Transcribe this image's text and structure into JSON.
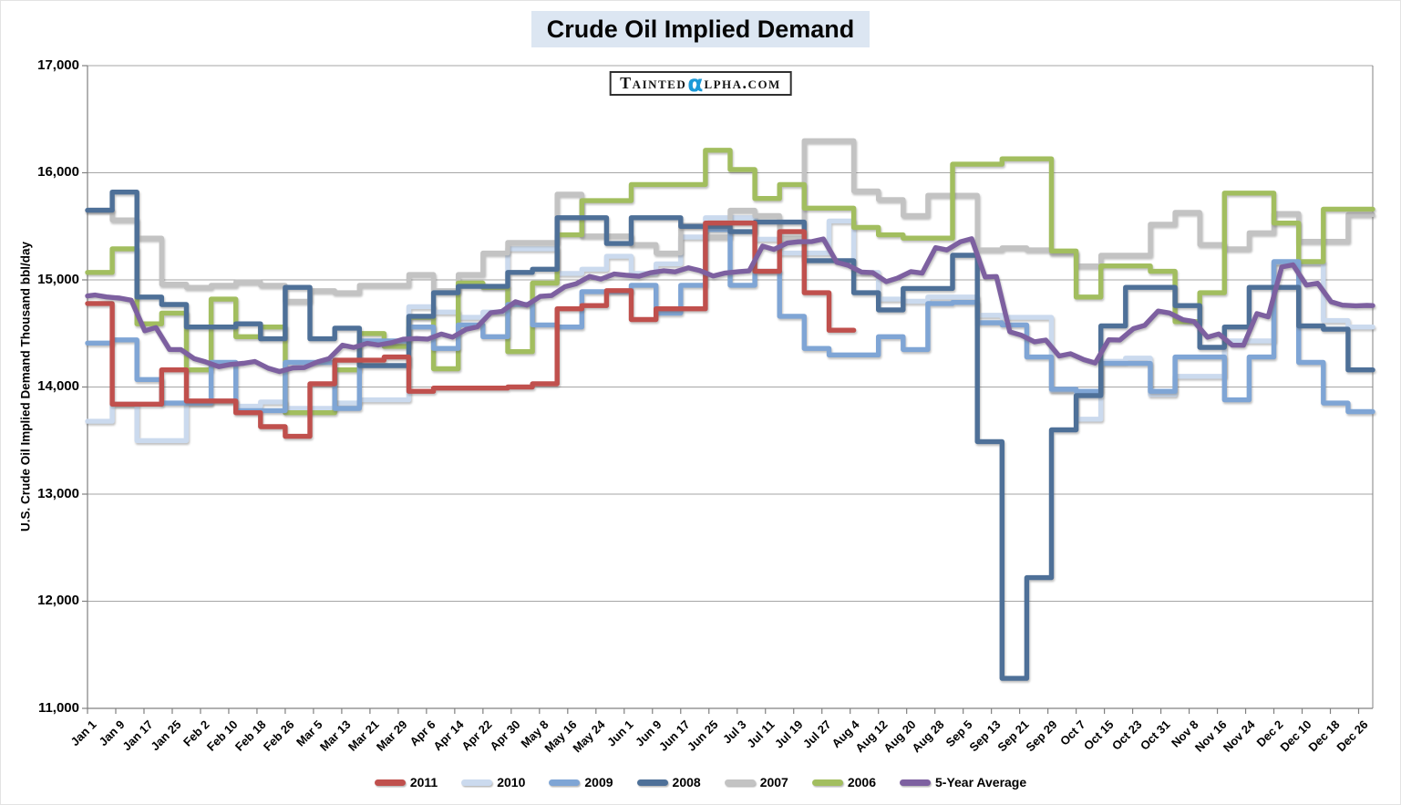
{
  "header": {
    "title": "Crude Oil Implied Demand"
  },
  "watermark": {
    "prefix": "Tainted",
    "alpha": "α",
    "suffix": "lpha.com"
  },
  "chart_data": {
    "type": "line",
    "title": "Crude Oil Implied Demand",
    "ylabel": "U.S. Crude Oil Implied Demand Thousand bbl/day",
    "ylim": [
      11000,
      17000
    ],
    "ytick_interval": 1000,
    "ytick_labels": [
      "11,000",
      "12,000",
      "13,000",
      "14,000",
      "15,000",
      "16,000",
      "17,000"
    ],
    "x_tick_labels": [
      "Jan 1",
      "Jan 9",
      "Jan 17",
      "Jan 25",
      "Feb 2",
      "Feb 10",
      "Feb 18",
      "Feb 26",
      "Mar 5",
      "Mar 13",
      "Mar 21",
      "Mar 29",
      "Apr 6",
      "Apr 14",
      "Apr 22",
      "Apr 30",
      "May 8",
      "May 16",
      "May 24",
      "Jun 1",
      "Jun 9",
      "Jun 17",
      "Jun 25",
      "Jul 3",
      "Jul 11",
      "Jul 19",
      "Jul 27",
      "Aug 4",
      "Aug 12",
      "Aug 20",
      "Aug 28",
      "Sep 5",
      "Sep 13",
      "Sep 21",
      "Sep 29",
      "Oct 7",
      "Oct 15",
      "Oct 23",
      "Oct 31",
      "Nov 8",
      "Nov 16",
      "Nov 24",
      "Dec 2",
      "Dec 10",
      "Dec 18",
      "Dec 26"
    ],
    "x_label_step_days": 8,
    "x_total_days": 364,
    "week_days": 7,
    "grid": "horizontal",
    "grid_color": "#a6a6a6",
    "axis_color": "#808080",
    "legend_position": "bottom",
    "series": [
      {
        "name": "2011",
        "color": "#C0504D",
        "style": "step",
        "z": 6,
        "values": [
          14780,
          13840,
          13840,
          14160,
          13870,
          13870,
          13760,
          13630,
          13540,
          14030,
          14250,
          14250,
          14280,
          13960,
          13990,
          13990,
          13990,
          14000,
          14030,
          14730,
          14760,
          14900,
          14630,
          14730,
          14730,
          15530,
          15530,
          15080,
          15450,
          14880,
          14530
        ]
      },
      {
        "name": "2010",
        "color": "#CBDAEE",
        "style": "step",
        "z": 1,
        "values": [
          13680,
          13840,
          13500,
          13500,
          13850,
          13870,
          13820,
          13860,
          13800,
          13800,
          13850,
          13880,
          13880,
          14750,
          14700,
          14650,
          14700,
          15290,
          15290,
          15060,
          15100,
          15220,
          15060,
          15150,
          15400,
          15580,
          15580,
          15380,
          15250,
          15250,
          15550,
          15070,
          14820,
          14800,
          14840,
          14840,
          14670,
          14650,
          14650,
          13970,
          13700,
          14240,
          14270,
          13930,
          14100,
          14100,
          14430,
          14430,
          15160,
          15160,
          14620,
          14560
        ]
      },
      {
        "name": "2009",
        "color": "#7FA5D5",
        "style": "step",
        "z": 4,
        "values": [
          14410,
          14440,
          14070,
          13850,
          13850,
          14230,
          13780,
          13780,
          14230,
          14230,
          13800,
          14430,
          14430,
          14560,
          14360,
          14580,
          14470,
          14770,
          14580,
          14560,
          14890,
          14890,
          14950,
          14690,
          14950,
          15470,
          14950,
          15080,
          14660,
          14360,
          14300,
          14300,
          14470,
          14350,
          14780,
          14790,
          14600,
          14580,
          14280,
          13980,
          13960,
          14220,
          14220,
          13960,
          14280,
          14280,
          13880,
          14280,
          15170,
          14230,
          13850,
          13770
        ]
      },
      {
        "name": "2008",
        "color": "#4E7098",
        "style": "step",
        "z": 5,
        "values": [
          15650,
          15820,
          14840,
          14770,
          14560,
          14560,
          14590,
          14450,
          14930,
          14450,
          14550,
          14200,
          14200,
          14660,
          14880,
          14940,
          14940,
          15070,
          15100,
          15580,
          15580,
          15340,
          15580,
          15580,
          15500,
          15500,
          15450,
          15540,
          15540,
          15180,
          15180,
          14880,
          14720,
          14920,
          14920,
          15230,
          13490,
          11280,
          12220,
          13600,
          13920,
          14570,
          14930,
          14930,
          14760,
          14370,
          14560,
          14930,
          14930,
          14570,
          14540,
          14160
        ]
      },
      {
        "name": "2007",
        "color": "#C3C3C3",
        "style": "step",
        "z": 2,
        "values": [
          15650,
          15560,
          15390,
          14960,
          14930,
          14950,
          14980,
          14950,
          14800,
          14900,
          14880,
          14950,
          14950,
          15050,
          14900,
          15050,
          15250,
          15350,
          15350,
          15800,
          15410,
          15410,
          15330,
          15250,
          15510,
          15400,
          15650,
          15600,
          15390,
          16300,
          16300,
          15830,
          15750,
          15600,
          15790,
          15790,
          15280,
          15300,
          15280,
          15250,
          15130,
          15230,
          15230,
          15520,
          15630,
          15330,
          15290,
          15440,
          15620,
          15360,
          15360,
          15610
        ]
      },
      {
        "name": "2006",
        "color": "#A2BE5F",
        "style": "step",
        "z": 3,
        "values": [
          15070,
          15290,
          14590,
          14690,
          14160,
          14820,
          14470,
          14560,
          13760,
          13760,
          14160,
          14500,
          14380,
          14650,
          14170,
          14970,
          14930,
          14330,
          14970,
          15420,
          15740,
          15740,
          15890,
          15890,
          15890,
          16210,
          16030,
          15760,
          15890,
          15670,
          15670,
          15490,
          15420,
          15390,
          15390,
          16080,
          16080,
          16130,
          16130,
          15270,
          14840,
          15130,
          15130,
          15080,
          14610,
          14880,
          15810,
          15810,
          15530,
          15170,
          15660,
          15660
        ]
      },
      {
        "name": "5-Year Average",
        "color": "#7D60A0",
        "style": "smooth",
        "z": 7,
        "values": [
          14850,
          14820,
          14540,
          14350,
          14250,
          14200,
          14230,
          14160,
          14180,
          14250,
          14380,
          14400,
          14430,
          14450,
          14480,
          14550,
          14700,
          14780,
          14850,
          14950,
          15020,
          15050,
          15050,
          15080,
          15100,
          15050,
          15080,
          15300,
          15350,
          15370,
          15150,
          15070,
          15000,
          15070,
          15290,
          15370,
          15030,
          14500,
          14430,
          14300,
          14240,
          14440,
          14560,
          14700,
          14620,
          14480,
          14390,
          14670,
          15130,
          14960,
          14780,
          14760
        ]
      }
    ]
  }
}
